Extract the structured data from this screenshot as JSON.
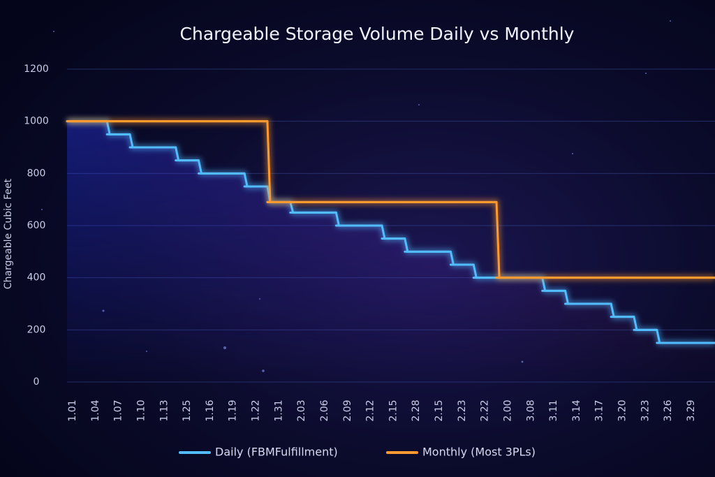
{
  "chart_data": {
    "type": "line",
    "step": "mid",
    "title": "Chargeable Storage Volume Daily vs Monthly",
    "y_label": "Chargeable Cubic Feet",
    "categories": [
      "1.01",
      "1.04",
      "1.07",
      "1.10",
      "1.13",
      "1.25",
      "1.16",
      "1.19",
      "1.22",
      "1.31",
      "2.03",
      "2.06",
      "2.09",
      "2.12",
      "2.15",
      "2.28",
      "2.15",
      "2.23",
      "2.22",
      "2.00",
      "3.08",
      "3.11",
      "3.14",
      "3.17",
      "3.20",
      "3.23",
      "3.26",
      "3.29"
    ],
    "series": [
      {
        "name": "Daily (FBMFulfillment)",
        "color": "#52bcff",
        "values": [
          1000,
          1000,
          950,
          900,
          900,
          850,
          800,
          800,
          750,
          690,
          650,
          650,
          600,
          600,
          550,
          500,
          500,
          450,
          400,
          400,
          400,
          350,
          300,
          300,
          250,
          200,
          150,
          150
        ]
      },
      {
        "name": "Monthly (Most 3PLs)",
        "color": "#ff9a2e",
        "values": [
          1000,
          1000,
          1000,
          1000,
          1000,
          1000,
          1000,
          1000,
          1000,
          690,
          690,
          690,
          690,
          690,
          690,
          690,
          690,
          690,
          690,
          400,
          400,
          400,
          400,
          400,
          400,
          400,
          400,
          400
        ]
      }
    ],
    "ylim": [
      0,
      1200
    ],
    "yticks": [
      0,
      200,
      400,
      600,
      800,
      1000,
      1200
    ],
    "grid": true
  }
}
